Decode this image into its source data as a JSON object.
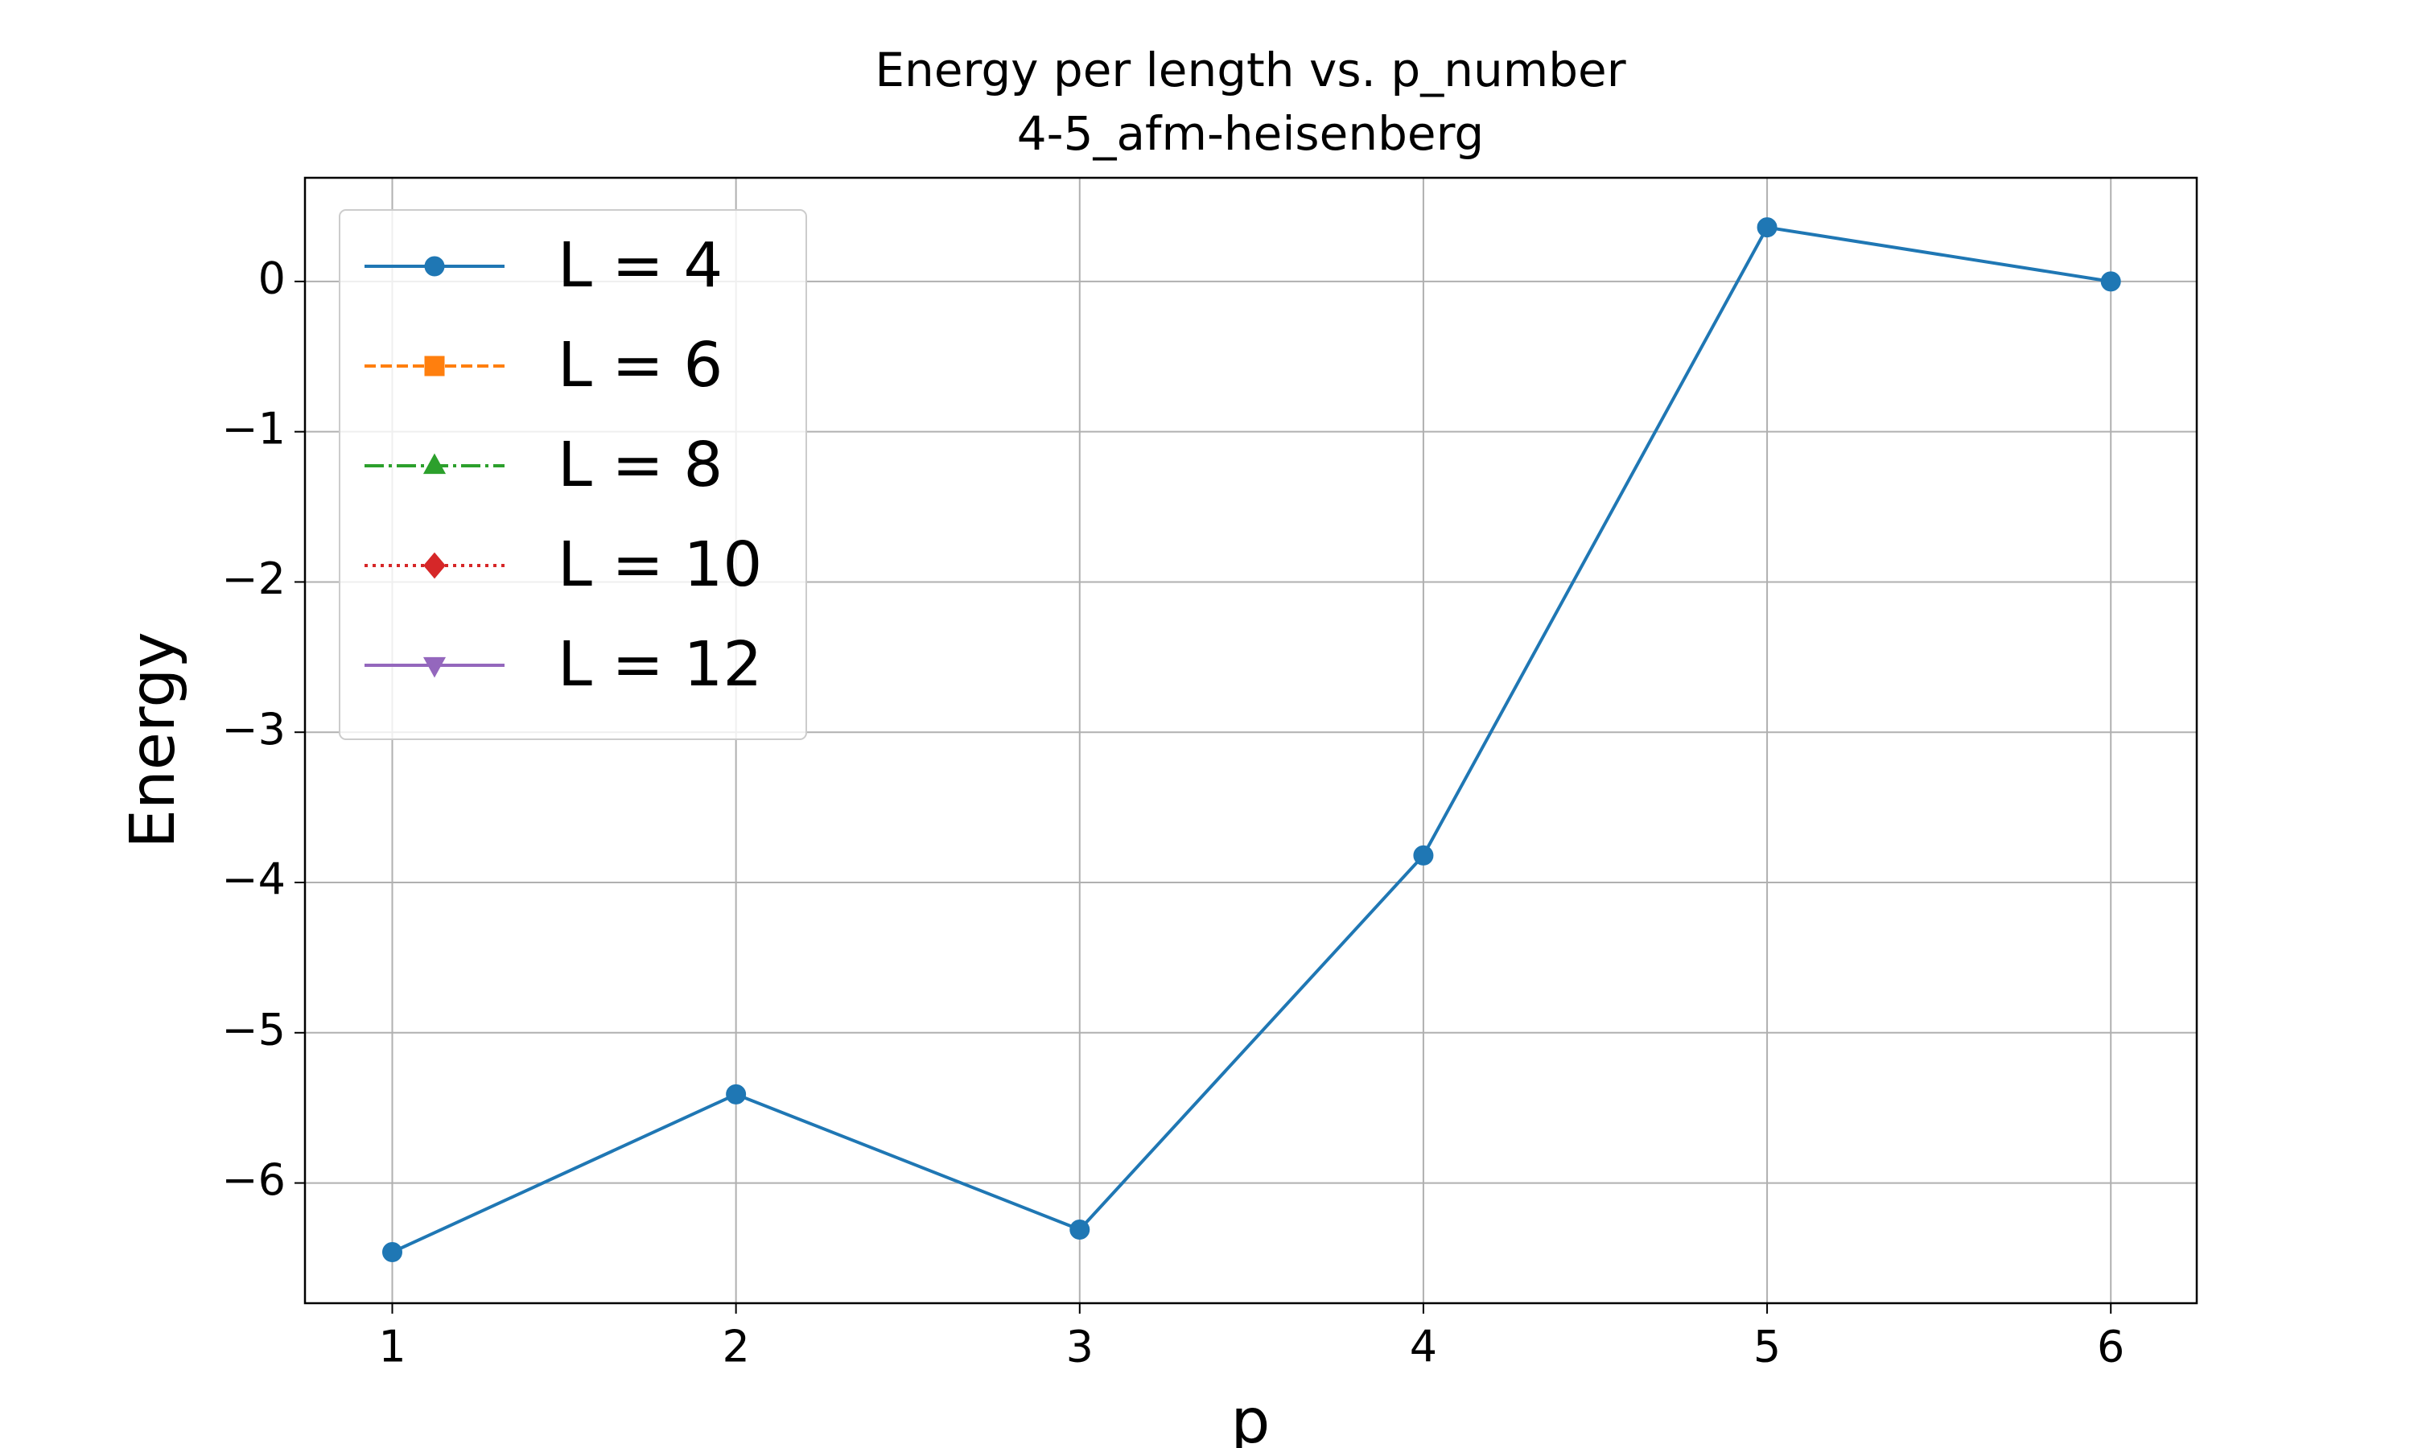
{
  "chart_data": {
    "type": "line",
    "title": "Energy per length vs. p_number",
    "subtitle": "4-5_afm-heisenberg",
    "x_label": "p",
    "y_label": "Energy",
    "x": [
      1,
      2,
      3,
      4,
      5,
      6
    ],
    "series": [
      {
        "name": "L = 4",
        "color": "#1f77b4",
        "marker": "circle",
        "linestyle": "solid",
        "values": [
          -6.46,
          -5.41,
          -6.31,
          -3.82,
          0.36,
          0.0
        ]
      },
      {
        "name": "L = 6",
        "color": "#ff7f0e",
        "marker": "square",
        "linestyle": "dashed",
        "values": [
          null,
          null,
          null,
          null,
          null,
          null
        ]
      },
      {
        "name": "L = 8",
        "color": "#2ca02c",
        "marker": "triangle-up",
        "linestyle": "dashdot",
        "values": [
          null,
          null,
          null,
          null,
          null,
          null
        ]
      },
      {
        "name": "L = 10",
        "color": "#d62728",
        "marker": "diamond",
        "linestyle": "dotted",
        "values": [
          null,
          null,
          null,
          null,
          null,
          null
        ]
      },
      {
        "name": "L = 12",
        "color": "#9467bd",
        "marker": "triangle-down",
        "linestyle": "solid",
        "values": [
          null,
          null,
          null,
          null,
          null,
          null
        ]
      }
    ],
    "xlim": [
      0.746,
      6.25
    ],
    "ylim": [
      -6.8,
      0.69
    ],
    "xticks": [
      1,
      2,
      3,
      4,
      5,
      6
    ],
    "yticks": [
      {
        "value": -6,
        "label": "−6"
      },
      {
        "value": -5,
        "label": "−5"
      },
      {
        "value": -4,
        "label": "−4"
      },
      {
        "value": -3,
        "label": "−3"
      },
      {
        "value": -2,
        "label": "−2"
      },
      {
        "value": -1,
        "label": "−1"
      },
      0
    ],
    "grid": true,
    "legend": "upper left"
  }
}
